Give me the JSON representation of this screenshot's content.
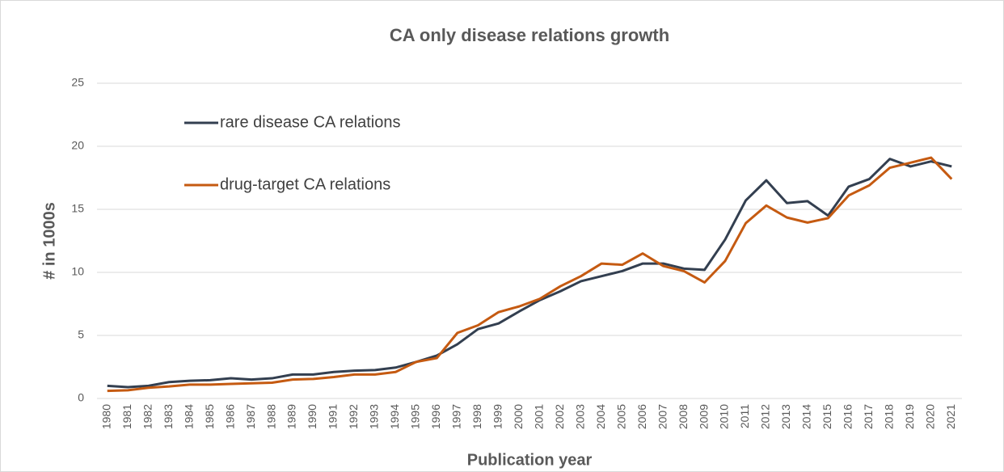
{
  "chart_data": {
    "type": "line",
    "title": "CA only disease relations growth",
    "x_label": "Publication year",
    "y_label": "# in 1000s",
    "categories": [
      "1980",
      "1981",
      "1982",
      "1983",
      "1984",
      "1985",
      "1986",
      "1987",
      "1988",
      "1989",
      "1990",
      "1991",
      "1992",
      "1993",
      "1994",
      "1995",
      "1996",
      "1997",
      "1998",
      "1999",
      "2000",
      "2001",
      "2002",
      "2003",
      "2004",
      "2005",
      "2006",
      "2007",
      "2008",
      "2009",
      "2010",
      "2011",
      "2012",
      "2013",
      "2014",
      "2015",
      "2016",
      "2017",
      "2018",
      "2019",
      "2020",
      "2021"
    ],
    "series": [
      {
        "name": "rare disease CA relations",
        "color": "#333f50",
        "values": [
          1.0,
          0.9,
          1.0,
          1.3,
          1.4,
          1.45,
          1.6,
          1.5,
          1.6,
          1.9,
          1.9,
          2.1,
          2.2,
          2.25,
          2.45,
          2.9,
          3.4,
          4.3,
          5.5,
          5.95,
          6.9,
          7.8,
          8.5,
          9.3,
          9.7,
          10.1,
          10.7,
          10.7,
          10.3,
          10.2,
          12.6,
          15.7,
          17.3,
          15.5,
          15.65,
          14.5,
          16.8,
          17.4,
          19.0,
          18.4,
          18.8,
          18.4
        ]
      },
      {
        "name": "drug-target CA relations",
        "color": "#c55a11",
        "values": [
          0.6,
          0.65,
          0.85,
          0.95,
          1.1,
          1.1,
          1.15,
          1.2,
          1.25,
          1.5,
          1.55,
          1.7,
          1.9,
          1.9,
          2.1,
          2.9,
          3.2,
          5.2,
          5.8,
          6.85,
          7.3,
          7.9,
          8.9,
          9.7,
          10.7,
          10.6,
          11.5,
          10.5,
          10.1,
          9.2,
          10.9,
          13.9,
          15.3,
          14.35,
          13.95,
          14.3,
          16.1,
          16.9,
          18.3,
          18.7,
          19.1,
          17.4
        ]
      }
    ],
    "ylim": [
      0,
      25
    ],
    "yticks": [
      0,
      5,
      10,
      15,
      20,
      25
    ],
    "grid": true,
    "legend": "upper left"
  }
}
